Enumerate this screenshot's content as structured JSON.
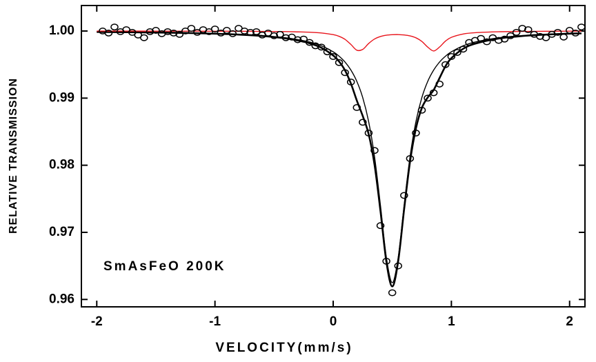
{
  "chart_data": {
    "type": "scatter",
    "xlabel": "VELOCITY(mm/s)",
    "ylabel": "RELATIVE TRANSMISSION",
    "annotation": "SmAsFeO 200K",
    "xlim": [
      -2.13,
      2.13
    ],
    "ylim": [
      0.9589,
      1.0038
    ],
    "xticks": [
      -2,
      -1,
      0,
      1,
      2
    ],
    "yticks": [
      {
        "value": 0.96,
        "label": "0.96"
      },
      {
        "value": 0.97,
        "label": "0.97"
      },
      {
        "value": 0.98,
        "label": "0.98"
      },
      {
        "value": 0.99,
        "label": "0.99"
      },
      {
        "value": 1.0,
        "label": "1.00"
      }
    ],
    "series": [
      {
        "style": "markers",
        "color": "#000000",
        "x": [
          -1.95,
          -1.9,
          -1.85,
          -1.8,
          -1.75,
          -1.7,
          -1.65,
          -1.6,
          -1.55,
          -1.5,
          -1.45,
          -1.4,
          -1.35,
          -1.3,
          -1.25,
          -1.2,
          -1.15,
          -1.1,
          -1.05,
          -1.0,
          -0.95,
          -0.9,
          -0.85,
          -0.8,
          -0.75,
          -0.7,
          -0.65,
          -0.6,
          -0.55,
          -0.5,
          -0.45,
          -0.4,
          -0.35,
          -0.3,
          -0.25,
          -0.2,
          -0.15,
          -0.1,
          -0.05,
          0,
          0.05,
          0.1,
          0.15,
          0.2,
          0.25,
          0.3,
          0.35,
          0.4,
          0.45,
          0.5,
          0.55,
          0.6,
          0.65,
          0.7,
          0.75,
          0.8,
          0.85,
          0.9,
          0.95,
          1.0,
          1.05,
          1.1,
          1.15,
          1.2,
          1.25,
          1.3,
          1.35,
          1.4,
          1.45,
          1.5,
          1.55,
          1.6,
          1.65,
          1.7,
          1.75,
          1.8,
          1.85,
          1.9,
          1.95,
          2.0,
          2.05,
          2.1
        ],
        "values": [
          1.0,
          0.9997,
          1.0006,
          0.9999,
          1.0002,
          0.9998,
          0.9994,
          0.999,
          0.9999,
          1.0001,
          0.9996,
          0.9999,
          0.9997,
          0.9995,
          1.0,
          1.0004,
          0.9998,
          1.0002,
          0.9999,
          1.0003,
          0.9997,
          1.0001,
          0.9996,
          1.0004,
          1.0,
          0.9998,
          0.9999,
          0.9994,
          0.9997,
          0.9993,
          0.9995,
          0.999,
          0.9991,
          0.9987,
          0.9988,
          0.9983,
          0.9978,
          0.9976,
          0.9969,
          0.9962,
          0.9953,
          0.9938,
          0.9924,
          0.9886,
          0.9864,
          0.9848,
          0.9822,
          0.971,
          0.9657,
          0.961,
          0.965,
          0.9755,
          0.981,
          0.9848,
          0.9882,
          0.99,
          0.9908,
          0.9921,
          0.995,
          0.9962,
          0.9968,
          0.9973,
          0.9983,
          0.9986,
          0.9989,
          0.9984,
          0.999,
          0.9986,
          0.9988,
          0.9993,
          0.9998,
          1.0004,
          1.0002,
          0.9995,
          0.9992,
          0.999,
          0.9995,
          0.9998,
          0.9991,
          1.0001,
          0.9997,
          1.0006
        ]
      },
      {
        "style": "line",
        "color": "#000000",
        "linewidth": 2.6,
        "x": [
          -2,
          -1.75,
          -1.5,
          -1.25,
          -1,
          -0.8,
          -0.6,
          -0.4,
          -0.3,
          -0.2,
          -0.1,
          0,
          0.05,
          0.1,
          0.15,
          0.2,
          0.25,
          0.3,
          0.35,
          0.4,
          0.45,
          0.5,
          0.55,
          0.6,
          0.65,
          0.7,
          0.75,
          0.8,
          0.85,
          0.9,
          0.95,
          1.0,
          1.1,
          1.2,
          1.4,
          1.6,
          1.8,
          2.0,
          2.1
        ],
        "values": [
          0.99986,
          0.99982,
          0.99977,
          0.99971,
          0.9996,
          0.99947,
          0.99926,
          0.9989,
          0.99859,
          0.99818,
          0.99751,
          0.99636,
          0.99546,
          0.99414,
          0.99217,
          0.98964,
          0.98734,
          0.98464,
          0.98006,
          0.97318,
          0.96562,
          0.96195,
          0.96572,
          0.97341,
          0.98052,
          0.98549,
          0.98853,
          0.9901,
          0.99121,
          0.993,
          0.99475,
          0.99596,
          0.99736,
          0.99811,
          0.99888,
          0.99926,
          0.99947,
          0.99961,
          0.99965
        ]
      },
      {
        "style": "line",
        "color": "#000000",
        "linewidth": 1.4,
        "x": [
          -2,
          -1.75,
          -1.5,
          -1.25,
          -1,
          -0.8,
          -0.6,
          -0.4,
          -0.3,
          -0.2,
          -0.1,
          0,
          0.05,
          0.1,
          0.15,
          0.2,
          0.25,
          0.3,
          0.35,
          0.4,
          0.45,
          0.5,
          0.55,
          0.6,
          0.65,
          0.7,
          0.75,
          0.8,
          0.85,
          0.9,
          0.95,
          1.0,
          1.1,
          1.2,
          1.4,
          1.6,
          1.8,
          2.0,
          2.1
        ],
        "values": [
          0.99987,
          0.99983,
          0.99979,
          0.99973,
          0.99963,
          0.99951,
          0.99932,
          0.99899,
          0.99872,
          0.99836,
          0.9978,
          0.9969,
          0.99625,
          0.99538,
          0.99418,
          0.9925,
          0.99008,
          0.9865,
          0.98125,
          0.974,
          0.96625,
          0.9625,
          0.96625,
          0.974,
          0.98125,
          0.9865,
          0.99008,
          0.9925,
          0.99418,
          0.99538,
          0.99625,
          0.9969,
          0.9978,
          0.99836,
          0.99899,
          0.99932,
          0.99951,
          0.99963,
          0.99967
        ]
      },
      {
        "style": "line",
        "color": "#e8141b",
        "linewidth": 1.4,
        "x": [
          -2,
          -1.75,
          -1.5,
          -1.25,
          -1,
          -0.8,
          -0.6,
          -0.4,
          -0.3,
          -0.2,
          -0.1,
          0,
          0.05,
          0.1,
          0.15,
          0.2,
          0.25,
          0.3,
          0.35,
          0.4,
          0.45,
          0.5,
          0.55,
          0.6,
          0.65,
          0.7,
          0.75,
          0.8,
          0.85,
          0.9,
          0.95,
          1.0,
          1.1,
          1.2,
          1.4,
          1.6,
          1.8,
          2.0,
          2.1
        ],
        "values": [
          0.99999,
          0.99999,
          0.99998,
          0.99998,
          0.99997,
          0.99996,
          0.99994,
          0.99991,
          0.99987,
          0.99982,
          0.99971,
          0.99946,
          0.99921,
          0.99876,
          0.99799,
          0.99714,
          0.99726,
          0.99814,
          0.99881,
          0.99918,
          0.99937,
          0.99945,
          0.99947,
          0.99941,
          0.99927,
          0.99899,
          0.99845,
          0.9976,
          0.99703,
          0.99762,
          0.9985,
          0.99906,
          0.99956,
          0.99975,
          0.99989,
          0.99994,
          0.99996,
          0.99998,
          0.99998
        ]
      }
    ]
  }
}
